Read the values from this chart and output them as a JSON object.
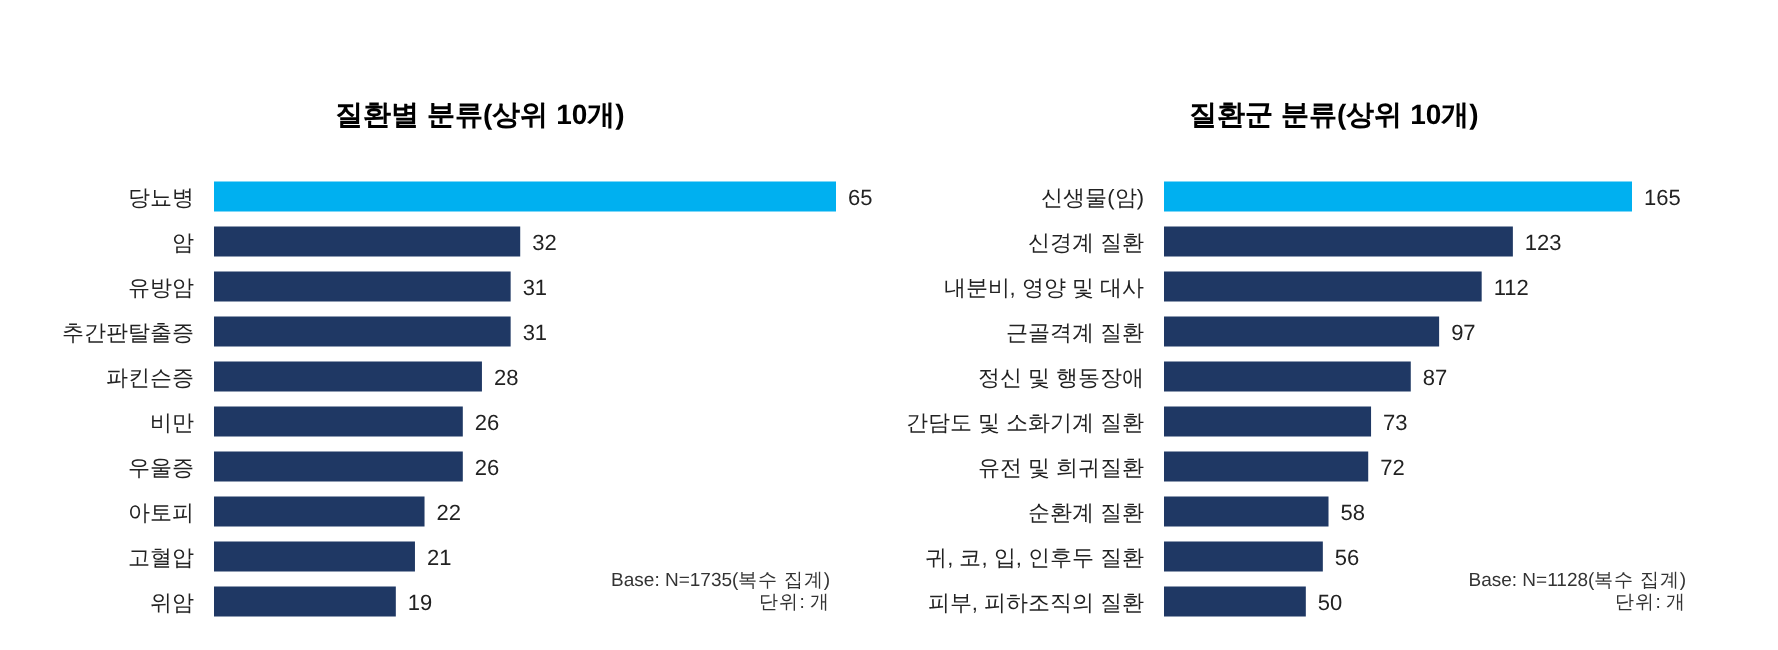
{
  "chart_data": [
    {
      "type": "bar",
      "orientation": "horizontal",
      "title": "질환별 분류(상위 10개)",
      "categories": [
        "당뇨병",
        "암",
        "유방암",
        "추간판탈출증",
        "파킨슨증",
        "비만",
        "우울증",
        "아토피",
        "고혈압",
        "위암"
      ],
      "values": [
        65,
        32,
        31,
        31,
        28,
        26,
        26,
        22,
        21,
        19
      ],
      "colors": [
        "#00b0f0",
        "#1f3864",
        "#1f3864",
        "#1f3864",
        "#1f3864",
        "#1f3864",
        "#1f3864",
        "#1f3864",
        "#1f3864",
        "#1f3864"
      ],
      "data_labels": true,
      "annotations": [
        "Base: N=1735(복수 집계)",
        "단위: 개"
      ]
    },
    {
      "type": "bar",
      "orientation": "horizontal",
      "title": "질환군 분류(상위 10개)",
      "categories": [
        "신생물(암)",
        "신경계 질환",
        "내분비, 영양 및 대사",
        "근골격계 질환",
        "정신 및 행동장애",
        "간담도 및 소화기계 질환",
        "유전 및 희귀질환",
        "순환계 질환",
        "귀, 코, 입, 인후두 질환",
        "피부, 피하조직의 질환"
      ],
      "values": [
        165,
        123,
        112,
        97,
        87,
        73,
        72,
        58,
        56,
        50
      ],
      "colors": [
        "#00b0f0",
        "#1f3864",
        "#1f3864",
        "#1f3864",
        "#1f3864",
        "#1f3864",
        "#1f3864",
        "#1f3864",
        "#1f3864",
        "#1f3864"
      ],
      "data_labels": true,
      "annotations": [
        "Base: N=1128(복수 집계)",
        "단위: 개"
      ]
    }
  ]
}
